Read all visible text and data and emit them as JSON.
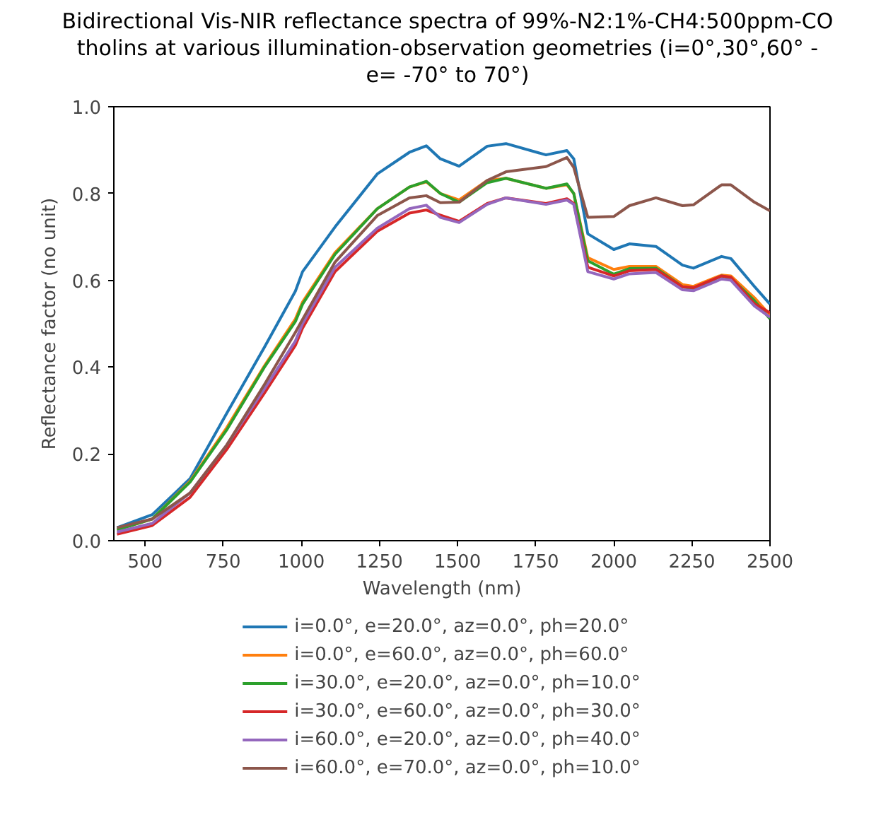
{
  "chart_data": {
    "type": "line",
    "title": "Bidirectional Vis-NIR reflectance spectra of 99%-N2:1%-CH4:500ppm-CO tholins at various illumination-observation geometries (i=0°,30°,60° - e= -70° to 70°)",
    "xlabel": "Wavelength (nm)",
    "ylabel": "Reflectance factor (no unit)",
    "x": [
      410,
      523,
      644,
      761,
      882,
      981,
      1004,
      1108,
      1243,
      1346,
      1400,
      1445,
      1505,
      1595,
      1655,
      1783,
      1850,
      1872,
      1917,
      2000,
      2050,
      2135,
      2220,
      2255,
      2345,
      2375,
      2450,
      2500
    ],
    "series": [
      {
        "name": "i=0.0°, e=20.0°, az=0.0°, ph=20.0°",
        "color": "#1f77b4",
        "values": [
          0.03,
          0.06,
          0.143,
          0.293,
          0.446,
          0.575,
          0.62,
          0.723,
          0.845,
          0.895,
          0.91,
          0.88,
          0.863,
          0.909,
          0.915,
          0.889,
          0.899,
          0.88,
          0.707,
          0.671,
          0.684,
          0.678,
          0.635,
          0.628,
          0.655,
          0.65,
          0.586,
          0.545
        ]
      },
      {
        "name": "i=0.0°, e=60.0°, az=0.0°, ph=60.0°",
        "color": "#ff7f0e",
        "values": [
          0.025,
          0.05,
          0.137,
          0.26,
          0.403,
          0.511,
          0.55,
          0.664,
          0.765,
          0.815,
          0.827,
          0.8,
          0.785,
          0.83,
          0.835,
          0.812,
          0.82,
          0.8,
          0.652,
          0.625,
          0.632,
          0.632,
          0.59,
          0.586,
          0.612,
          0.61,
          0.56,
          0.52
        ]
      },
      {
        "name": "i=30.0°, e=20.0°, az=0.0°, ph=10.0°",
        "color": "#2ca02c",
        "values": [
          0.025,
          0.05,
          0.135,
          0.255,
          0.4,
          0.505,
          0.545,
          0.66,
          0.765,
          0.815,
          0.828,
          0.8,
          0.78,
          0.825,
          0.835,
          0.812,
          0.822,
          0.8,
          0.645,
          0.614,
          0.627,
          0.628,
          0.585,
          0.58,
          0.61,
          0.605,
          0.553,
          0.511
        ]
      },
      {
        "name": "i=30.0°, e=60.0°, az=0.0°, ph=30.0°",
        "color": "#d62728",
        "values": [
          0.015,
          0.035,
          0.1,
          0.21,
          0.34,
          0.45,
          0.49,
          0.62,
          0.713,
          0.755,
          0.762,
          0.75,
          0.736,
          0.777,
          0.79,
          0.777,
          0.788,
          0.777,
          0.63,
          0.61,
          0.622,
          0.625,
          0.585,
          0.583,
          0.61,
          0.607,
          0.546,
          0.525
        ]
      },
      {
        "name": "i=60.0°, e=20.0°, az=0.0°, ph=40.0°",
        "color": "#9467bd",
        "values": [
          0.02,
          0.04,
          0.11,
          0.22,
          0.35,
          0.46,
          0.5,
          0.63,
          0.72,
          0.765,
          0.773,
          0.745,
          0.733,
          0.775,
          0.79,
          0.775,
          0.785,
          0.775,
          0.62,
          0.603,
          0.615,
          0.618,
          0.578,
          0.576,
          0.603,
          0.6,
          0.541,
          0.515
        ]
      },
      {
        "name": "i=60.0°, e=70.0°, az=0.0°, ph=10.0°",
        "color": "#8c564b",
        "values": [
          0.03,
          0.05,
          0.11,
          0.22,
          0.36,
          0.48,
          0.51,
          0.642,
          0.749,
          0.79,
          0.795,
          0.779,
          0.78,
          0.83,
          0.85,
          0.862,
          0.883,
          0.86,
          0.745,
          0.747,
          0.772,
          0.79,
          0.772,
          0.774,
          0.82,
          0.82,
          0.78,
          0.76
        ]
      }
    ],
    "xlim": [
      400,
      2500
    ],
    "xticks": [
      500,
      750,
      1000,
      1250,
      1500,
      1750,
      2000,
      2250,
      2500
    ],
    "ylim": [
      0,
      1
    ],
    "yticks": [
      {
        "value": 0,
        "label": "0.0"
      },
      {
        "value": 0.2,
        "label": "0.2"
      },
      {
        "value": 0.4,
        "label": "0.4"
      },
      {
        "value": 0.6,
        "label": "0.6"
      },
      {
        "value": 0.8,
        "label": "0.8"
      },
      {
        "value": 1,
        "label": "1.0"
      }
    ],
    "grid": false,
    "legend": "bottom",
    "marker": "none",
    "line_style": "solid"
  }
}
